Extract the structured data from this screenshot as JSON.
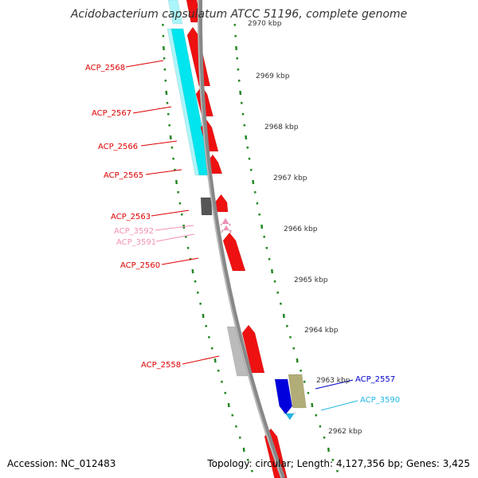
{
  "title": "Acidobacterium capsulatum ATCC 51196, complete genome",
  "footer": {
    "accession": "Accession: NC_012483",
    "topology": "Topology: circular; Length: 4,127,356 bp; Genes: 3,425"
  },
  "ruler": {
    "ticks": [
      "2970 kbp",
      "2969 kbp",
      "2968 kbp",
      "2967 kbp",
      "2966 kbp",
      "2965 kbp",
      "2964 kbp",
      "2963 kbp",
      "2962 kbp"
    ]
  },
  "gene_labels": [
    {
      "name": "ACP_2568",
      "color": "#dd0000"
    },
    {
      "name": "ACP_2567",
      "color": "#dd0000"
    },
    {
      "name": "ACP_2566",
      "color": "#dd0000"
    },
    {
      "name": "ACP_2565",
      "color": "#dd0000"
    },
    {
      "name": "ACP_2563",
      "color": "#dd0000"
    },
    {
      "name": "ACP_3592",
      "color": "#f490b8"
    },
    {
      "name": "ACP_3591",
      "color": "#f490b8"
    },
    {
      "name": "ACP_2560",
      "color": "#dd0000"
    },
    {
      "name": "ACP_2558",
      "color": "#dd0000"
    },
    {
      "name": "ACP_2557",
      "color": "#0000cc"
    },
    {
      "name": "ACP_3590",
      "color": "#22b8e6"
    }
  ],
  "colors": {
    "backbone": "#888888",
    "tick": "#228822",
    "gene_forward": "#ee1111",
    "gene_cyan": "#00e5ee",
    "gene_gray": "#bbbbbb",
    "gene_dark": "#555555",
    "gene_blue": "#0000dd",
    "gene_olive": "#b2ad77",
    "gene_pink": "#f490b8"
  }
}
